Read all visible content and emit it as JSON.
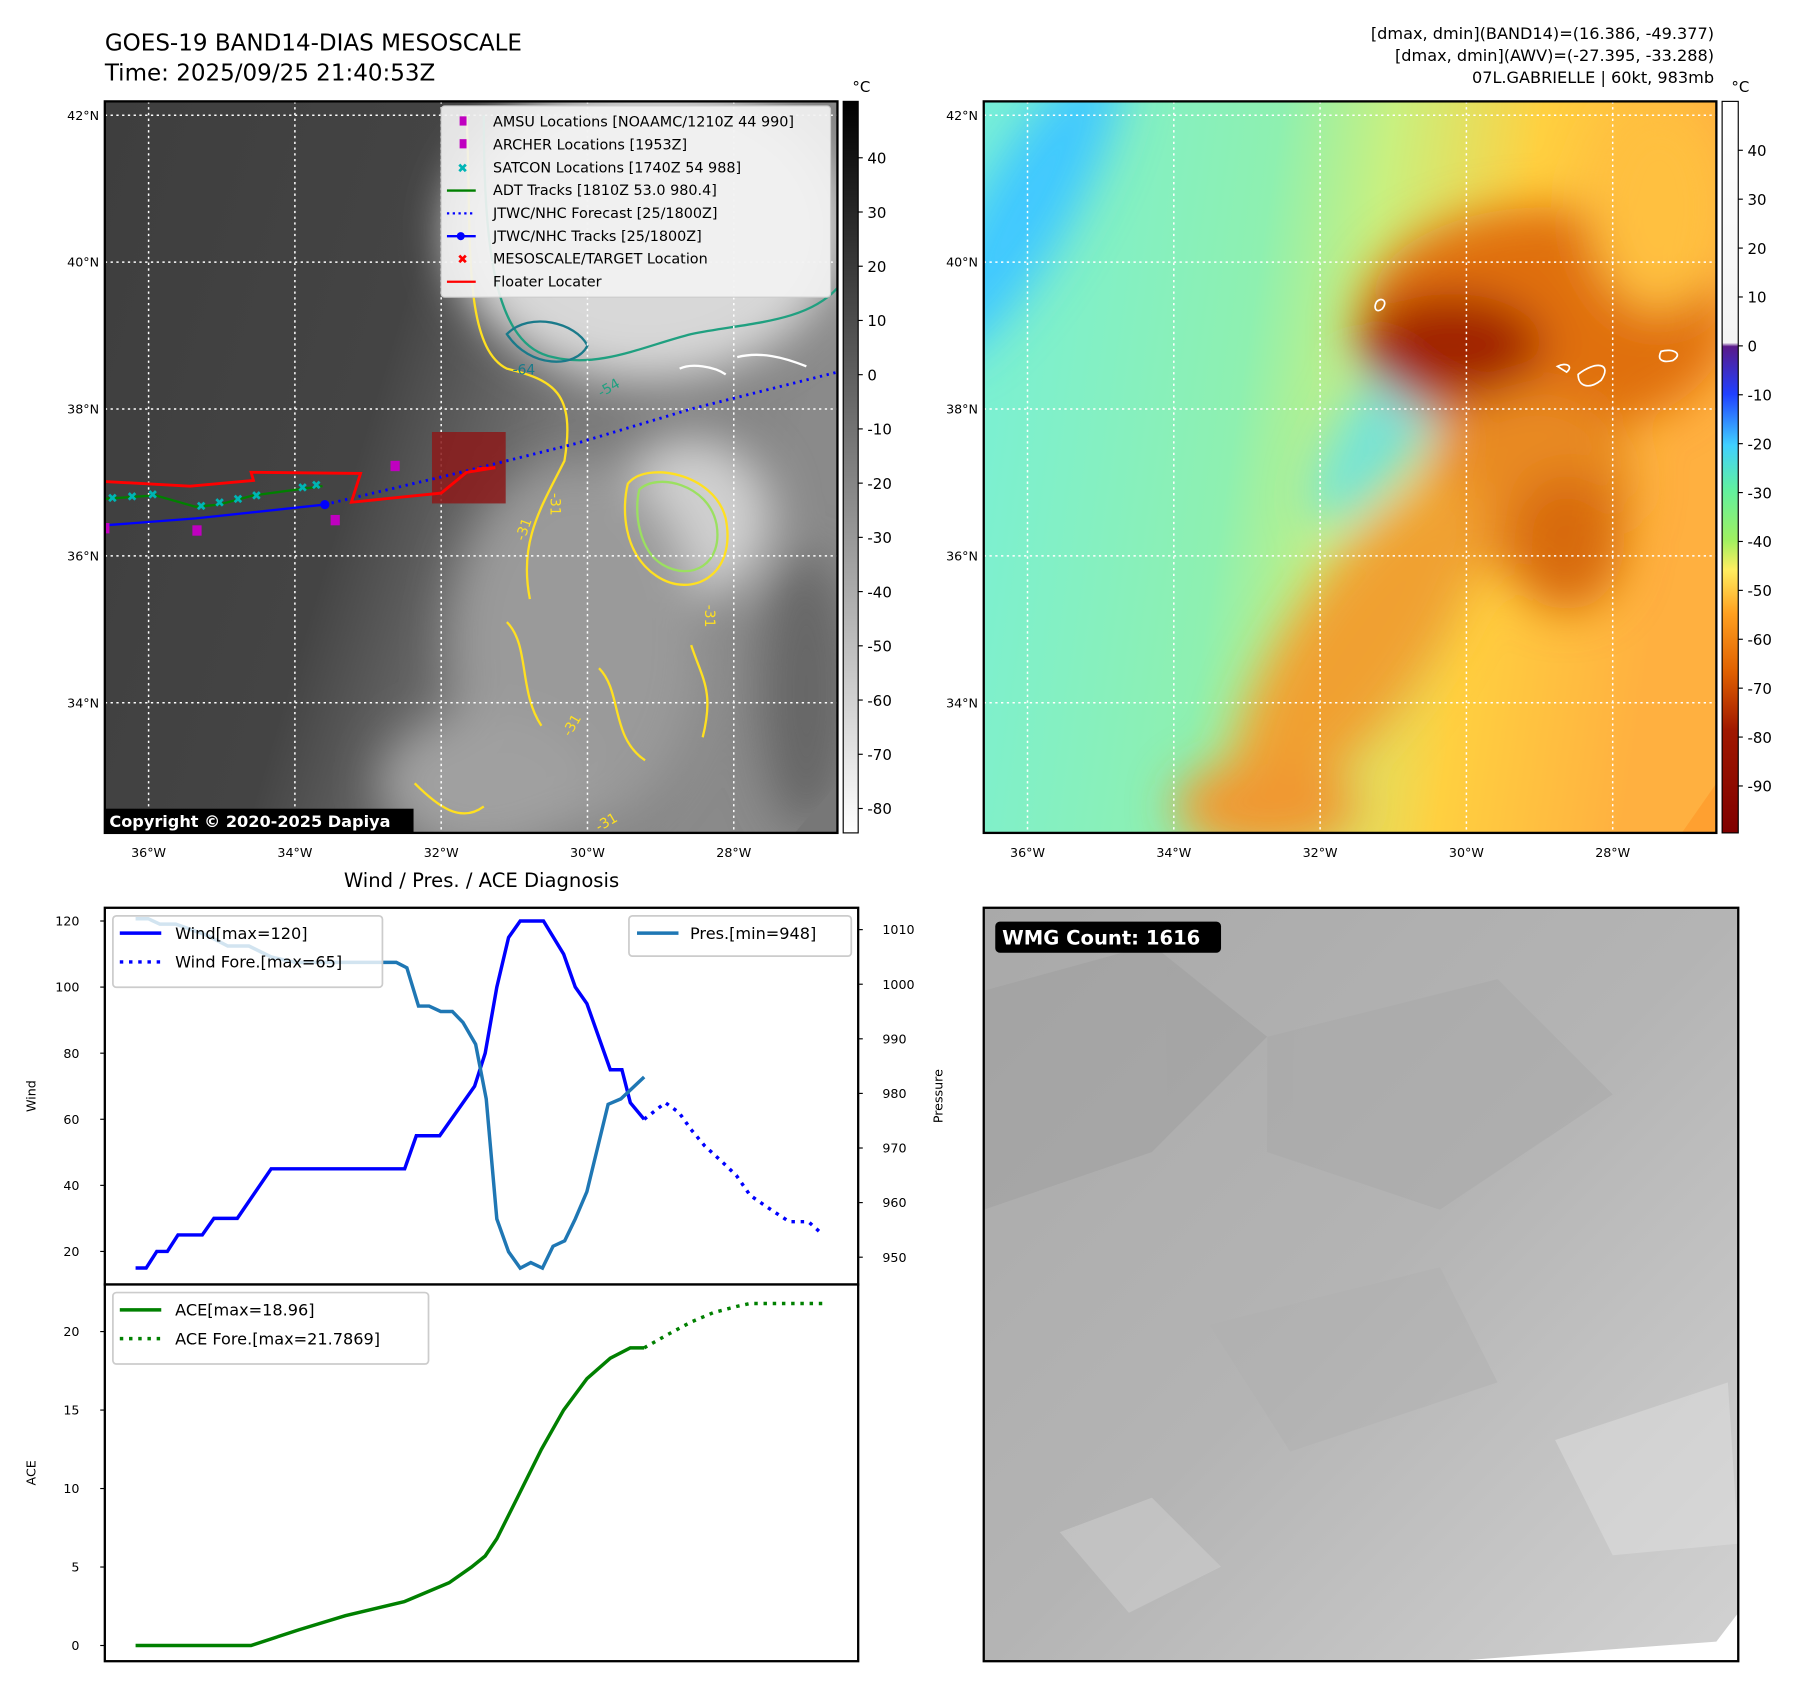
{
  "header": {
    "title": "GOES-19 BAND14-DIAS MESOSCALE",
    "time": "Time: 2025/09/25 21:40:53Z",
    "dmax_band14": "[dmax, dmin](BAND14)=(16.386, -49.377)",
    "dmax_awv": "[dmax, dmin](AWV)=(-27.395, -33.288)",
    "storm": "07L.GABRIELLE | 60kt, 983mb"
  },
  "map": {
    "lon_labels": [
      "36°W",
      "34°W",
      "32°W",
      "30°W",
      "28°W"
    ],
    "lat_labels": [
      "42°N",
      "40°N",
      "38°N",
      "36°N",
      "34°N"
    ],
    "copyright": "Copyright © 2020-2025 Dapiya",
    "contour_labels": [
      "-64",
      "-54",
      "-31",
      "-31",
      "-31",
      "-31",
      "-31"
    ],
    "legend": [
      {
        "label": "AMSU Locations [NOAAMC/1210Z 44 990]",
        "color": "#c000c0",
        "marker": "square"
      },
      {
        "label": "ARCHER Locations [1953Z]",
        "color": "#c000c0",
        "marker": "square"
      },
      {
        "label": "SATCON Locations [1740Z 54 988]",
        "color": "#00b5b5",
        "marker": "x"
      },
      {
        "label": "ADT Tracks [1810Z 53.0 980.4]",
        "color": "#008000",
        "marker": "line"
      },
      {
        "label": "JTWC/NHC Forecast [25/1800Z]",
        "color": "#0000ff",
        "marker": "dotted"
      },
      {
        "label": "JTWC/NHC Tracks [25/1800Z]",
        "color": "#0000ff",
        "marker": "line-dot"
      },
      {
        "label": "MESOSCALE/TARGET Location",
        "color": "#ff0000",
        "marker": "x"
      },
      {
        "label": "Floater Locater",
        "color": "#ff0000",
        "marker": "line"
      }
    ],
    "colorbar_unit": "°C",
    "colorbar1_ticks": [
      40,
      30,
      20,
      10,
      0,
      -10,
      -20,
      -30,
      -40,
      -50,
      -60,
      -70,
      -80
    ],
    "colorbar1_range": [
      -84.5,
      50.4
    ],
    "colorbar2_ticks": [
      40,
      30,
      20,
      10,
      0,
      -10,
      -20,
      -30,
      -40,
      -50,
      -60,
      -70,
      -80,
      -90
    ],
    "colorbar2_range": [
      -99.6,
      50
    ]
  },
  "wmg": {
    "label": "WMG Count: 1616"
  },
  "chart_data": [
    {
      "type": "line",
      "title": "Wind / Pres. / ACE Diagnosis",
      "ylabel": "Wind",
      "ylabel_right": "Pressure",
      "xlim": [
        -2.9,
        68.2
      ],
      "ylim": [
        10,
        124
      ],
      "ylim_right": [
        945,
        1014
      ],
      "yticks": [
        20,
        40,
        60,
        80,
        100,
        120
      ],
      "yticks_right": [
        950,
        960,
        970,
        980,
        990,
        1000,
        1010
      ],
      "legend_left": "top-left",
      "legend_right": "top-right",
      "series": [
        {
          "name": "Wind[max=120]",
          "axis": "left",
          "style": "solid",
          "color": "#0000ff",
          "x": [
            0,
            1,
            2,
            3,
            4,
            6.3,
            7.4,
            9.6,
            12.8,
            25.4,
            26.5,
            28.7,
            32,
            33,
            34.1,
            35.2,
            36.3,
            38.5,
            40.4,
            41.5,
            42.6,
            44.8,
            45.9,
            46.7,
            48
          ],
          "y": [
            15,
            15,
            20,
            20,
            25,
            25,
            30,
            30,
            45,
            45,
            55,
            55,
            70,
            80,
            100,
            115,
            120,
            120,
            110,
            100,
            95,
            75,
            75,
            65,
            60
          ]
        },
        {
          "name": "Wind Fore.[max=65]",
          "axis": "left",
          "style": "dotted",
          "color": "#0000ff",
          "x": [
            48,
            50,
            51.3,
            52.4,
            53.7,
            55.4,
            56.7,
            58,
            59.8,
            61.7,
            63.5,
            64.9
          ],
          "y": [
            60,
            65,
            62,
            57,
            52,
            47,
            43,
            37,
            33,
            29,
            29,
            25
          ]
        },
        {
          "name": "Pres.[min=948]",
          "axis": "right",
          "style": "solid",
          "color": "#1f77b4",
          "x": [
            0,
            1.2,
            2.3,
            3.8,
            6.7,
            8.7,
            10.7,
            12.8,
            15.1,
            24.6,
            25.6,
            26.7,
            27.7,
            28.8,
            29.9,
            30.9,
            32.1,
            33.1,
            34.1,
            35.2,
            36.3,
            37.3,
            38.4,
            39.4,
            40.5,
            41.5,
            42.6,
            43.6,
            44.6,
            45.8,
            48
          ],
          "y": [
            1012,
            1012,
            1011,
            1011,
            1009,
            1007,
            1007,
            1005,
            1004,
            1004,
            1003,
            996,
            996,
            995,
            995,
            993,
            989,
            979,
            957,
            951,
            948,
            949,
            948,
            952,
            953,
            957,
            962,
            970,
            978,
            979,
            983
          ]
        }
      ]
    },
    {
      "type": "line",
      "ylabel": "ACE",
      "xlim": [
        -2.9,
        68.2
      ],
      "ylim": [
        -1,
        23
      ],
      "yticks": [
        0,
        5,
        10,
        15,
        20
      ],
      "legend": "top-left",
      "series": [
        {
          "name": "ACE[max=18.96]",
          "style": "solid",
          "color": "#008000",
          "x": [
            0,
            10.9,
            15.4,
            19.8,
            25.4,
            29.6,
            31.7,
            33,
            34.1,
            36.1,
            38.3,
            40.4,
            42.6,
            44.8,
            46.7,
            48
          ],
          "y": [
            0,
            0,
            1,
            1.9,
            2.8,
            4,
            5,
            5.7,
            6.8,
            9.5,
            12.5,
            15,
            17,
            18.3,
            18.96,
            18.96
          ]
        },
        {
          "name": "ACE Fore.[max=21.7869]",
          "style": "dotted",
          "color": "#008000",
          "x": [
            48,
            50.2,
            52.4,
            54.5,
            56.7,
            58,
            64.9
          ],
          "y": [
            18.96,
            19.8,
            20.6,
            21.2,
            21.6,
            21.79,
            21.79
          ]
        }
      ]
    }
  ]
}
